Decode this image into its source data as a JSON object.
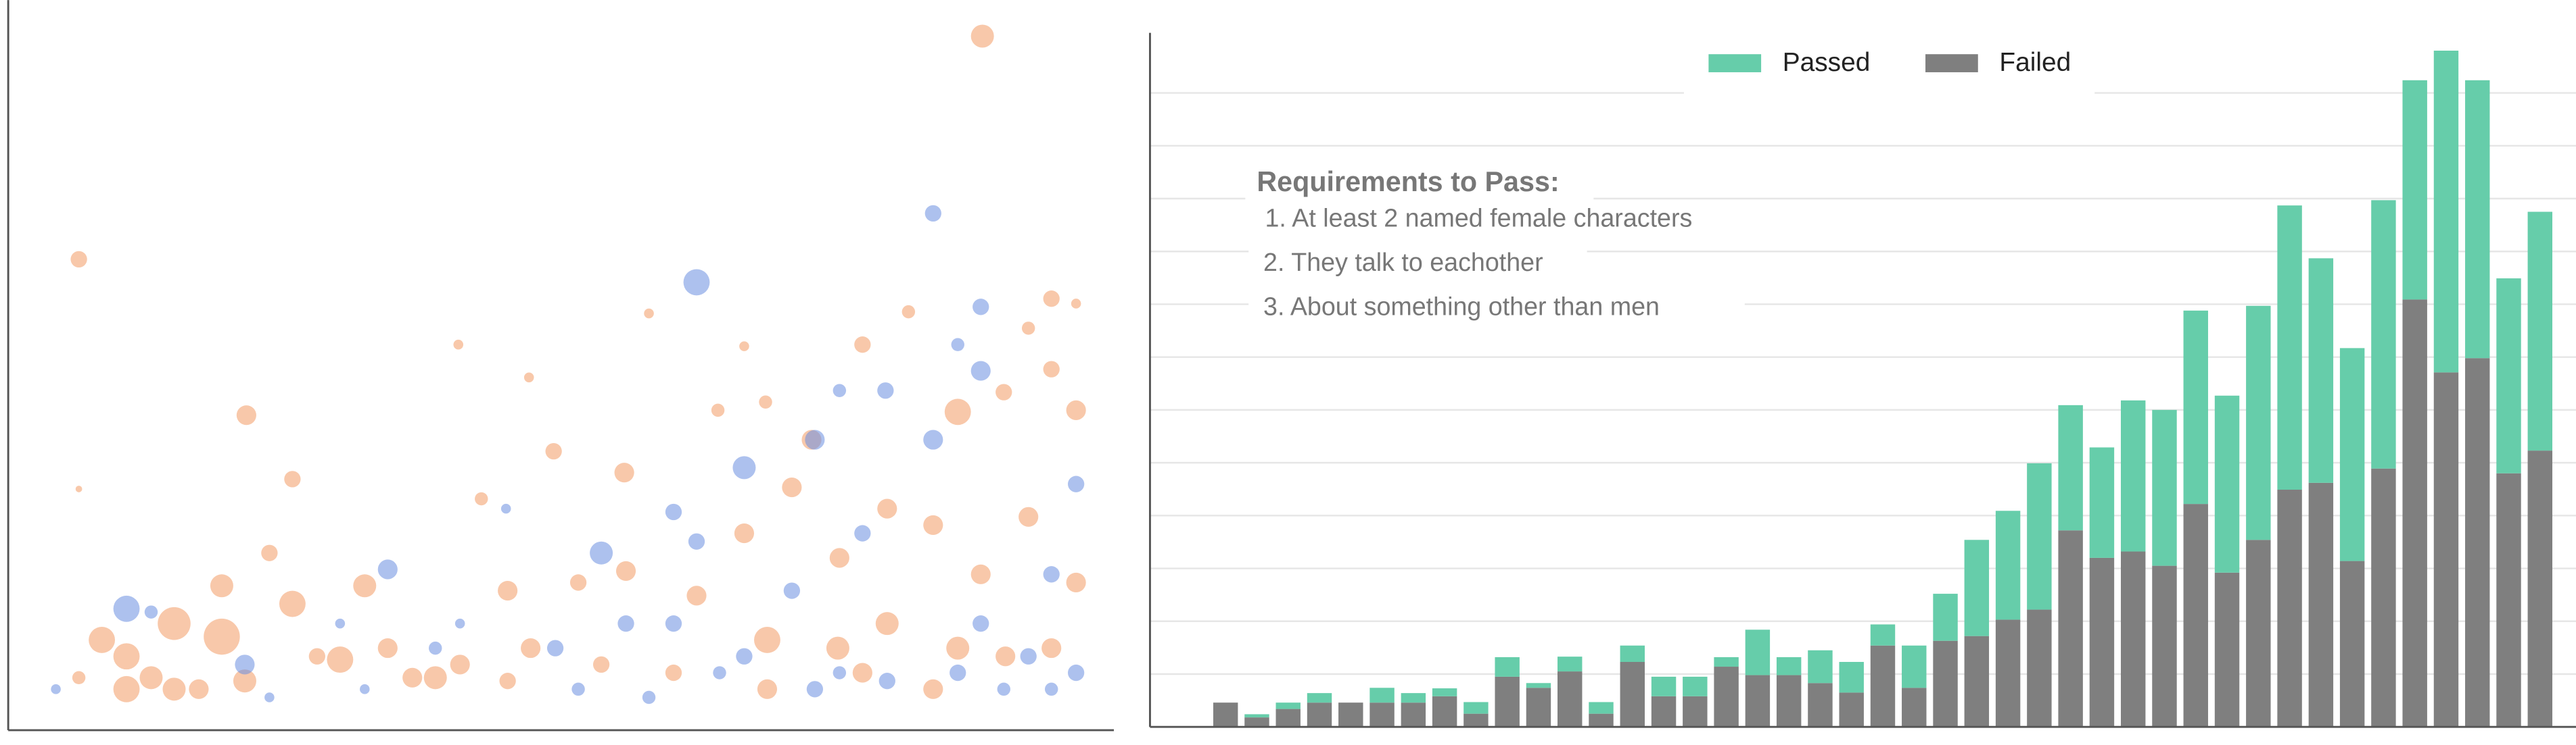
{
  "chart_data": [
    {
      "type": "scatter",
      "xlim": [
        0,
        673
      ],
      "ylim": [
        0,
        445
      ],
      "series": [
        {
          "color": "#f39a64",
          "x": [
            43,
            43,
            593,
            145,
            274,
            317,
            390,
            448,
            520,
            548,
            635,
            650,
            173,
            332,
            288,
            375,
            432,
            461,
            489,
            578,
            606,
            621,
            635,
            650,
            130,
            173,
            217,
            101,
            130,
            57,
            72,
            87,
            101,
            72,
            116,
            202,
            246,
            260,
            159,
            43,
            304,
            347,
            376,
            419,
            448,
            477,
            506,
            535,
            563,
            592,
            621,
            650,
            462,
            505,
            535,
            578,
            607,
            635,
            462,
            520,
            563,
            231,
            275,
            318,
            144,
            188,
            304,
            361,
            405
          ],
          "values": [
            287,
            147,
            423,
            192,
            235,
            215,
            254,
            234,
            235,
            255,
            263,
            260,
            153,
            170,
            141,
            157,
            195,
            200,
            177,
            194,
            206,
            245,
            220,
            195,
            88,
            77,
            88,
            65,
            57,
            55,
            45,
            32,
            25,
            25,
            25,
            43,
            32,
            32,
            108,
            32,
            85,
            90,
            97,
            82,
            120,
            148,
            105,
            135,
            125,
            95,
            130,
            90,
            55,
            50,
            65,
            50,
            45,
            50,
            25,
            35,
            25,
            50,
            40,
            50,
            30,
            45,
            30,
            40,
            35
          ],
          "sizes": [
            5,
            2,
            7,
            6,
            3,
            3,
            3,
            3,
            5,
            4,
            5,
            3,
            5,
            5,
            4,
            6,
            4,
            4,
            6,
            8,
            5,
            4,
            5,
            6,
            7,
            8,
            7,
            10,
            11,
            8,
            8,
            7,
            7,
            8,
            6,
            8,
            6,
            7,
            5,
            4,
            6,
            5,
            6,
            6,
            6,
            6,
            6,
            6,
            6,
            6,
            6,
            6,
            8,
            7,
            7,
            7,
            6,
            6,
            6,
            6,
            6,
            6,
            6,
            6,
            7,
            5,
            5,
            5,
            5
          ]
        },
        {
          "color": "#6a8ee0",
          "x": [
            563,
            419,
            592,
            578,
            592,
            534,
            506,
            448,
            491,
            361,
            231,
            72,
            144,
            29,
            87,
            405,
            563,
            650,
            419,
            477,
            520,
            592,
            635,
            376,
            333,
            405,
            448,
            491,
            535,
            578,
            621,
            650,
            260,
            303,
            275,
            347,
            390,
            433,
            506,
            606,
            635,
            202,
            217,
            159
          ],
          "values": [
            315,
            273,
            258,
            235,
            219,
            207,
            207,
            160,
            177,
            108,
            98,
            74,
            40,
            25,
            72,
            133,
            177,
            150,
            115,
            85,
            120,
            65,
            95,
            65,
            50,
            65,
            45,
            25,
            30,
            35,
            45,
            35,
            50,
            135,
            65,
            25,
            20,
            35,
            35,
            25,
            25,
            65,
            25,
            20
          ],
          "sizes": [
            5,
            8,
            5,
            4,
            6,
            5,
            4,
            7,
            6,
            7,
            6,
            8,
            6,
            3,
            4,
            5,
            6,
            5,
            5,
            5,
            5,
            5,
            5,
            5,
            5,
            5,
            5,
            5,
            5,
            5,
            5,
            5,
            4,
            3,
            3,
            4,
            4,
            4,
            4,
            4,
            4,
            3,
            3,
            3
          ]
        }
      ]
    },
    {
      "type": "bar",
      "stacked": true,
      "grid": true,
      "legend": "top",
      "annotation": {
        "title": "Requirements to Pass:",
        "items": [
          "1. At least 2 named female characters",
          "2. They talk to eachother",
          "3. About something other than men"
        ]
      },
      "categories": [
        null,
        null,
        null,
        null,
        null,
        null,
        null,
        null,
        null,
        null,
        null,
        null,
        null,
        null,
        null,
        null,
        null,
        null,
        null,
        null,
        null,
        null,
        null,
        null,
        null,
        null,
        null,
        null,
        null,
        null,
        null,
        null,
        null,
        null,
        null,
        null,
        null,
        null,
        null,
        null,
        null,
        null,
        null
      ],
      "ylim": [
        0,
        130
      ],
      "yticks": [
        0,
        10,
        20,
        30,
        40,
        50,
        60,
        70,
        80,
        90,
        100,
        110,
        120
      ],
      "series": [
        {
          "name": "Failed",
          "color": "#7f7f7f",
          "values": [
            4.6,
            1.8,
            3.4,
            4.6,
            4.6,
            4.6,
            4.6,
            5.8,
            2.5,
            9.5,
            7.4,
            10.5,
            2.5,
            12.3,
            5.8,
            5.8,
            11.4,
            9.8,
            9.8,
            8.3,
            6.5,
            15.4,
            7.4,
            16.3,
            17.2,
            20.3,
            22.2,
            37.2,
            32,
            33.2,
            30.5,
            42.2,
            29.2,
            35.4,
            44.9,
            46.2,
            31.4,
            48.9,
            80.9,
            67.1,
            69.8,
            48,
            52.3
          ]
        },
        {
          "name": "Passed",
          "color": "#66cdaa",
          "values": [
            0,
            0.6,
            1.2,
            1.8,
            0,
            2.8,
            1.8,
            1.5,
            2.2,
            3.7,
            0.9,
            2.8,
            2.2,
            3.1,
            3.7,
            3.7,
            1.8,
            8.6,
            3.4,
            6.2,
            5.8,
            4,
            8,
            8.9,
            18.2,
            20.6,
            27.7,
            23.7,
            20.9,
            28.6,
            29.5,
            36.6,
            33.5,
            44.3,
            53.8,
            42.5,
            40.3,
            50.8,
            41.5,
            60.9,
            52.6,
            36.9,
            45.2
          ]
        }
      ]
    }
  ]
}
